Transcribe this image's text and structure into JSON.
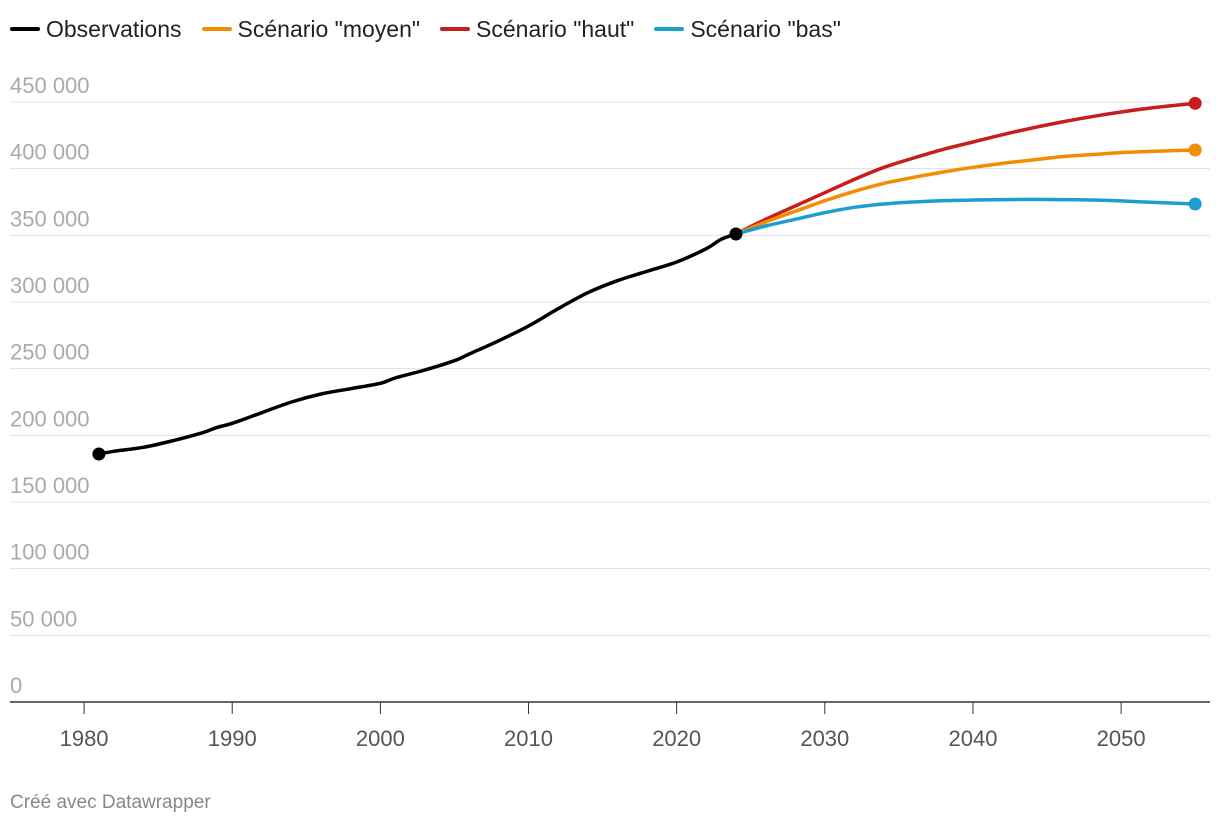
{
  "chart_data": {
    "type": "line",
    "title": "",
    "xlabel": "",
    "ylabel": "",
    "xlim": [
      1975,
      2056
    ],
    "ylim": [
      0,
      450000
    ],
    "x_ticks": [
      1980,
      1990,
      2000,
      2010,
      2020,
      2030,
      2040,
      2050
    ],
    "y_ticks": [
      0,
      50000,
      100000,
      150000,
      200000,
      250000,
      300000,
      350000,
      400000,
      450000
    ],
    "y_tick_labels": [
      "0",
      "50 000",
      "100 000",
      "150 000",
      "200 000",
      "250 000",
      "300 000",
      "350 000",
      "400 000",
      "450 000"
    ],
    "legend_position": "top-left",
    "series": [
      {
        "name": "Observations",
        "color": "#000000",
        "x": [
          1981,
          1982,
          1984,
          1986,
          1988,
          1989,
          1990,
          1992,
          1994,
          1996,
          1998,
          2000,
          2001,
          2003,
          2005,
          2006,
          2008,
          2010,
          2012,
          2014,
          2016,
          2018,
          2020,
          2022,
          2023,
          2024
        ],
        "y": [
          186000,
          188000,
          191000,
          196000,
          202000,
          206000,
          209000,
          217000,
          225000,
          231000,
          235000,
          239000,
          243000,
          249000,
          256000,
          261000,
          271000,
          282000,
          295000,
          307000,
          316000,
          323000,
          330000,
          340000,
          347000,
          351000
        ]
      },
      {
        "name": "Scénario \"moyen\"",
        "color": "#f28c00",
        "x": [
          2024,
          2026,
          2028,
          2030,
          2032,
          2034,
          2036,
          2038,
          2040,
          2042,
          2044,
          2046,
          2048,
          2050,
          2052,
          2055
        ],
        "y": [
          351000,
          360000,
          368000,
          376000,
          383000,
          389000,
          393500,
          397500,
          401000,
          404000,
          406500,
          409000,
          410500,
          412000,
          413000,
          414000
        ]
      },
      {
        "name": "Scénario \"haut\"",
        "color": "#c91d1d",
        "x": [
          2024,
          2026,
          2028,
          2030,
          2032,
          2034,
          2036,
          2038,
          2040,
          2042,
          2044,
          2046,
          2048,
          2050,
          2052,
          2055
        ],
        "y": [
          351000,
          362000,
          372000,
          382000,
          392000,
          401000,
          408000,
          414500,
          420000,
          425500,
          430500,
          435000,
          439000,
          442500,
          445500,
          449000
        ]
      },
      {
        "name": "Scénario \"bas\"",
        "color": "#1c9fd0",
        "x": [
          2024,
          2026,
          2028,
          2030,
          2032,
          2034,
          2036,
          2038,
          2040,
          2042,
          2044,
          2046,
          2048,
          2050,
          2052,
          2055
        ],
        "y": [
          351000,
          357000,
          362000,
          367000,
          371000,
          373500,
          375000,
          376000,
          376500,
          376800,
          377000,
          376800,
          376500,
          375800,
          374800,
          373500
        ]
      }
    ],
    "markers": [
      {
        "series": "Observations",
        "x": 1981,
        "y": 186000,
        "color": "#000000"
      },
      {
        "series": "Observations",
        "x": 2024,
        "y": 351000,
        "color": "#000000"
      },
      {
        "series": "Scénario \"haut\"",
        "x": 2055,
        "y": 449000,
        "color": "#c91d1d"
      },
      {
        "series": "Scénario \"moyen\"",
        "x": 2055,
        "y": 414000,
        "color": "#f28c00"
      },
      {
        "series": "Scénario \"bas\"",
        "x": 2055,
        "y": 373500,
        "color": "#1c9fd0"
      }
    ]
  },
  "legend": {
    "items": [
      {
        "label": "Observations",
        "color": "#000000"
      },
      {
        "label": "Scénario \"moyen\"",
        "color": "#f28c00"
      },
      {
        "label": "Scénario \"haut\"",
        "color": "#c91d1d"
      },
      {
        "label": "Scénario \"bas\"",
        "color": "#1c9fd0"
      }
    ]
  },
  "footer": {
    "credit": "Créé avec Datawrapper"
  }
}
